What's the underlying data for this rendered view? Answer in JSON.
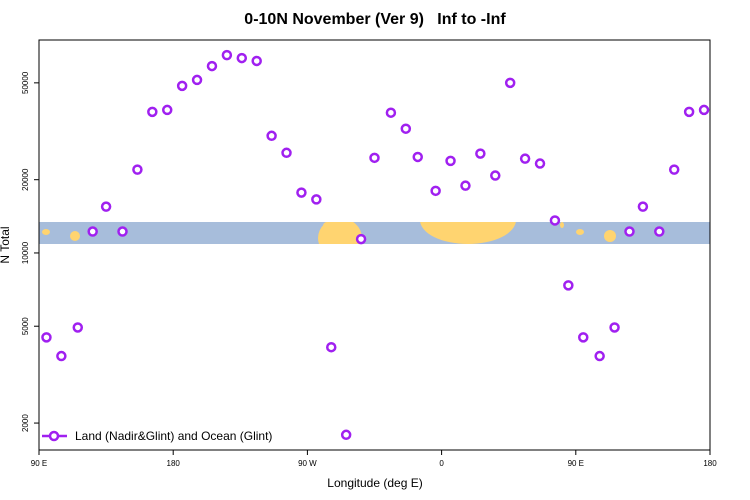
{
  "chart_data": {
    "type": "scatter",
    "title": "0-10N November (Ver 9)   Inf to -Inf",
    "x_label": "Longitude (deg E)",
    "y_label": "N Total",
    "xlim": [
      90,
      540
    ],
    "xticks": [
      {
        "value": 90,
        "label": "90 E"
      },
      {
        "value": 180,
        "label": "180"
      },
      {
        "value": 270,
        "label": "90 W"
      },
      {
        "value": 360,
        "label": "0"
      },
      {
        "value": 450,
        "label": "90 E"
      },
      {
        "value": 540,
        "label": "180"
      }
    ],
    "ylim": [
      1550,
      75000
    ],
    "yticks": [
      2000,
      5000,
      10000,
      20000,
      50000
    ],
    "log_y": true,
    "legend": "bottom-left",
    "series": [
      {
        "name": "Land (Nadir&Glint) and Ocean (Glint)",
        "color": "#a020f0",
        "x": [
          95,
          105,
          116,
          126,
          135,
          146,
          156,
          166,
          176,
          186,
          196,
          206,
          216,
          226,
          236,
          246,
          256,
          266,
          276,
          286,
          296,
          306,
          315,
          326,
          336,
          344,
          356,
          366,
          376,
          386,
          396,
          406,
          416,
          426,
          436,
          445,
          455,
          466,
          476,
          486,
          495,
          506,
          516,
          526,
          536
        ],
        "values": [
          4500,
          3770,
          4940,
          12250,
          15500,
          12250,
          22000,
          38000,
          38700,
          48600,
          51400,
          58600,
          65000,
          63200,
          61500,
          30300,
          25800,
          17700,
          16600,
          4100,
          1790,
          11400,
          24600,
          37700,
          32400,
          24800,
          18000,
          23900,
          18900,
          25600,
          20800,
          50000,
          24400,
          23300,
          13600,
          7360,
          4500,
          3770,
          4940,
          12250,
          15500,
          12250,
          22000,
          38000,
          38700
        ]
      }
    ]
  }
}
